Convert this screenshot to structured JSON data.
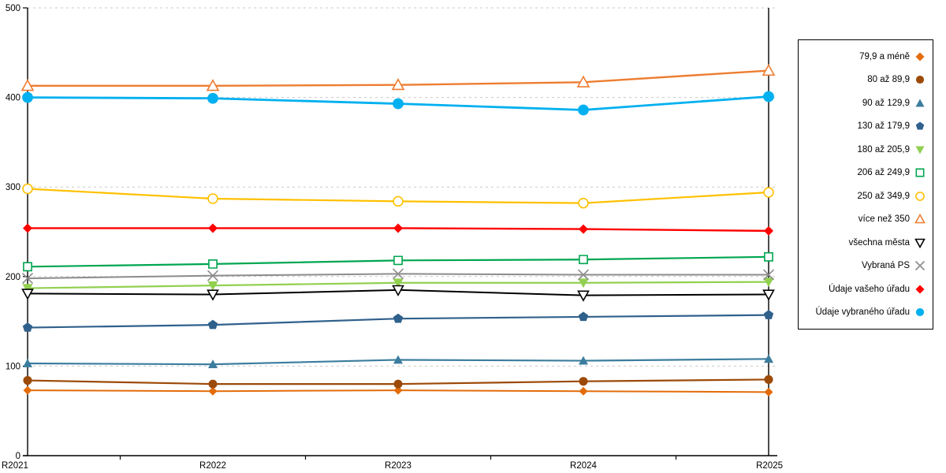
{
  "chart_data": {
    "type": "line",
    "title": "",
    "xlabel": "",
    "ylabel": "",
    "categories": [
      "R2021",
      "R2022",
      "R2023",
      "R2024",
      "R2025"
    ],
    "y_ticks": [
      "0",
      "100",
      "200",
      "300",
      "400",
      "500"
    ],
    "ylim": [
      0,
      500
    ],
    "grid": "horizontal-dashed",
    "legend_position": "right",
    "axis_color": "#000000",
    "gridline_color": "#c9c9c9",
    "series": [
      {
        "name": "79,9 a méně",
        "color": "#e36c0a",
        "marker": "diamond",
        "fill": "filled",
        "msize": 5.5,
        "lw": 2.0,
        "values": [
          73,
          72,
          73,
          72,
          71
        ]
      },
      {
        "name": "80 až 89,9",
        "color": "#9c4a08",
        "marker": "circle",
        "fill": "filled",
        "msize": 6.0,
        "lw": 2.2,
        "values": [
          84,
          80,
          80,
          83,
          85
        ]
      },
      {
        "name": "90 až 129,9",
        "color": "#3b7d9e",
        "marker": "triangle-up",
        "fill": "filled",
        "msize": 6.0,
        "lw": 2.2,
        "values": [
          103,
          102,
          107,
          106,
          108
        ]
      },
      {
        "name": "130 až 179,9",
        "color": "#30618c",
        "marker": "pentagon",
        "fill": "filled",
        "msize": 6.5,
        "lw": 2.2,
        "values": [
          143,
          146,
          153,
          155,
          157
        ]
      },
      {
        "name": "180 až 205,9",
        "color": "#92d050",
        "marker": "triangle-down",
        "fill": "filled",
        "msize": 6.5,
        "lw": 2.2,
        "values": [
          187,
          190,
          193,
          193,
          194
        ]
      },
      {
        "name": "206 až 249,9",
        "color": "#00a651",
        "marker": "square",
        "fill": "open",
        "msize": 6.0,
        "lw": 2.2,
        "values": [
          211,
          214,
          218,
          219,
          222
        ]
      },
      {
        "name": "250 až 349,9",
        "color": "#ffc000",
        "marker": "circle",
        "fill": "open",
        "msize": 6.5,
        "lw": 2.2,
        "values": [
          298,
          287,
          284,
          282,
          294
        ]
      },
      {
        "name": "více než 350",
        "color": "#ed7d31",
        "marker": "triangle-up",
        "fill": "open",
        "msize": 7.0,
        "lw": 2.4,
        "values": [
          413,
          413,
          414,
          417,
          430
        ]
      },
      {
        "name": "všechna města",
        "color": "#000000",
        "marker": "triangle-down",
        "fill": "open",
        "msize": 6.5,
        "lw": 2.0,
        "values": [
          181,
          180,
          185,
          179,
          180
        ]
      },
      {
        "name": "Vybraná PS",
        "color": "#8c8c8c",
        "marker": "x",
        "fill": "stroke",
        "msize": 6.5,
        "lw": 2.0,
        "values": [
          198,
          201,
          203,
          202,
          202
        ]
      },
      {
        "name": "Údaje vašeho úřadu",
        "color": "#ff0000",
        "marker": "diamond",
        "fill": "filled",
        "msize": 6.0,
        "lw": 2.4,
        "values": [
          254,
          254,
          254,
          253,
          251
        ]
      },
      {
        "name": "Údaje vybraného úřadu",
        "color": "#00b0f0",
        "marker": "circle",
        "fill": "filled",
        "msize": 7.5,
        "lw": 2.8,
        "values": [
          400,
          399,
          393,
          386,
          401
        ]
      }
    ]
  }
}
